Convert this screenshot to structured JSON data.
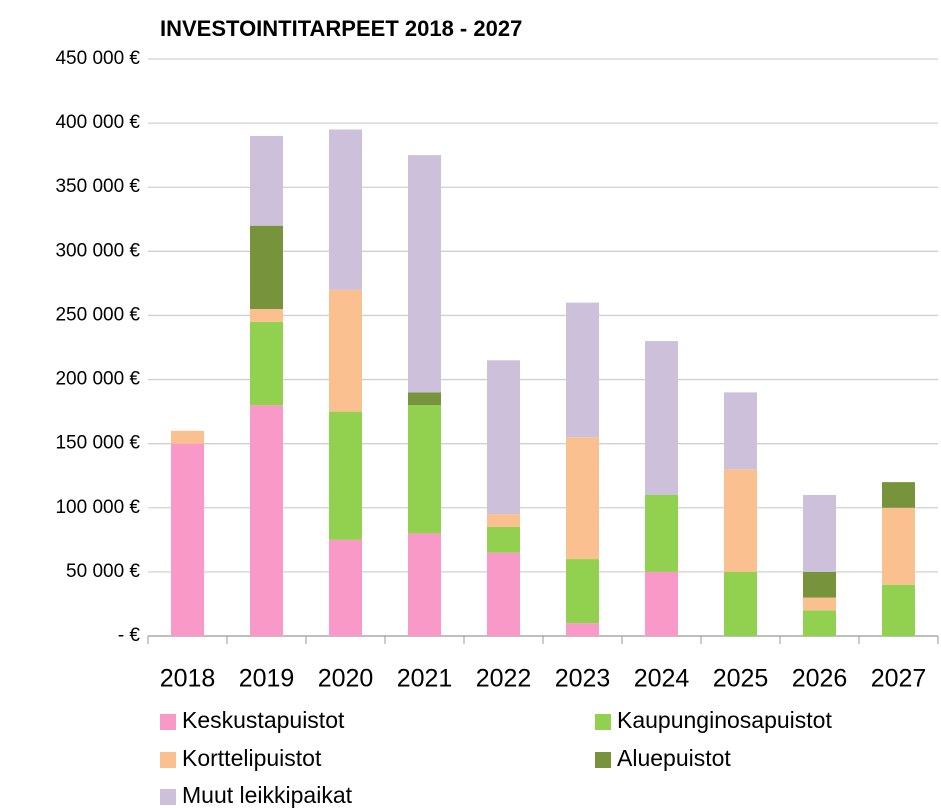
{
  "chart_data": {
    "type": "stacked_bar",
    "title": "INVESTOINTITARPEET 2018 - 2027",
    "categories": [
      "2018",
      "2019",
      "2020",
      "2021",
      "2022",
      "2023",
      "2024",
      "2025",
      "2026",
      "2027"
    ],
    "series": [
      {
        "name": "Keskustapuistot",
        "color": "#f999c8",
        "values": [
          150000,
          180000,
          75000,
          80000,
          65000,
          10000,
          50000,
          0,
          0,
          0
        ]
      },
      {
        "name": "Kaupunginosapuistot",
        "color": "#92d050",
        "values": [
          0,
          65000,
          100000,
          100000,
          20000,
          50000,
          60000,
          50000,
          20000,
          40000
        ]
      },
      {
        "name": "Korttelipuistot",
        "color": "#fac090",
        "values": [
          10000,
          10000,
          95000,
          0,
          10000,
          95000,
          0,
          80000,
          10000,
          60000
        ]
      },
      {
        "name": "Aluepuistot",
        "color": "#77933c",
        "values": [
          0,
          65000,
          0,
          10000,
          0,
          0,
          0,
          0,
          20000,
          20000
        ]
      },
      {
        "name": "Muut leikkipaikat",
        "color": "#ccc0da",
        "values": [
          0,
          70000,
          125000,
          185000,
          120000,
          105000,
          120000,
          60000,
          60000,
          0
        ]
      }
    ],
    "ylim": [
      0,
      450000
    ],
    "yticks": [
      {
        "value": 0,
        "label": "-  €"
      },
      {
        "value": 50000,
        "label": "50 000 €"
      },
      {
        "value": 100000,
        "label": "100 000 €"
      },
      {
        "value": 150000,
        "label": "150 000 €"
      },
      {
        "value": 200000,
        "label": "200 000 €"
      },
      {
        "value": 250000,
        "label": "250 000 €"
      },
      {
        "value": 300000,
        "label": "300 000 €"
      },
      {
        "value": 350000,
        "label": "350 000 €"
      },
      {
        "value": 400000,
        "label": "400 000 €"
      },
      {
        "value": 450000,
        "label": "450 000 €"
      }
    ],
    "grid": true
  }
}
